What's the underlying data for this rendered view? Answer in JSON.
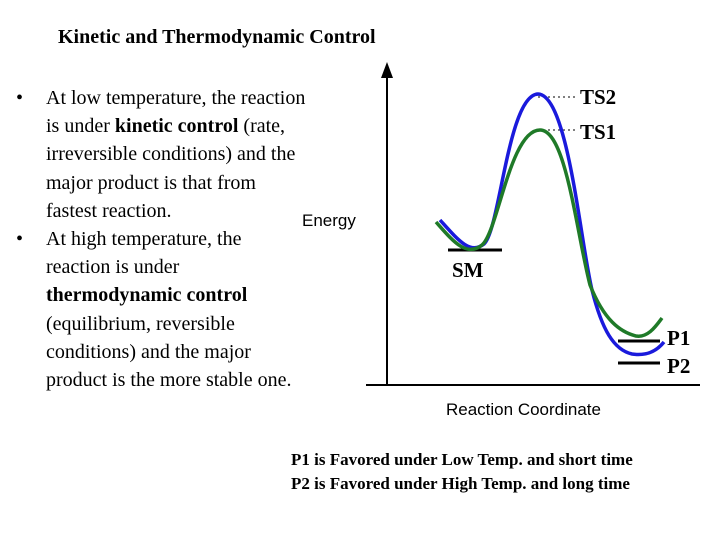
{
  "title": "Kinetic and Thermodynamic Control",
  "bullets": [
    {
      "marker": "•",
      "parts": [
        {
          "text": "At low temperature, the reaction is under ",
          "bold": false
        },
        {
          "text": "kinetic control",
          "bold": true
        },
        {
          "text": " (rate, irreversible conditions) and the major product is that from fastest reaction.",
          "bold": false
        }
      ]
    },
    {
      "marker": "•",
      "parts": [
        {
          "text": "At high temperature, the reaction is under ",
          "bold": false
        },
        {
          "text": "thermodynamic control",
          "bold": true
        },
        {
          "text": " (equilibrium, reversible conditions) and the major product is the more stable one.",
          "bold": false
        }
      ]
    }
  ],
  "diagram": {
    "y_axis_label": "Energy",
    "x_axis_label": "Reaction Coordinate",
    "labels": {
      "ts2": "TS2",
      "ts1": "TS1",
      "sm": "SM",
      "p1": "P1",
      "p2": "P2"
    },
    "colors": {
      "path_to_p2": "#1a1adc",
      "path_to_p1": "#1f7a28",
      "axis": "#000000"
    }
  },
  "footer": {
    "line1": "P1 is Favored under Low Temp. and short time",
    "line2": "P2 is Favored under High Temp. and long time"
  }
}
